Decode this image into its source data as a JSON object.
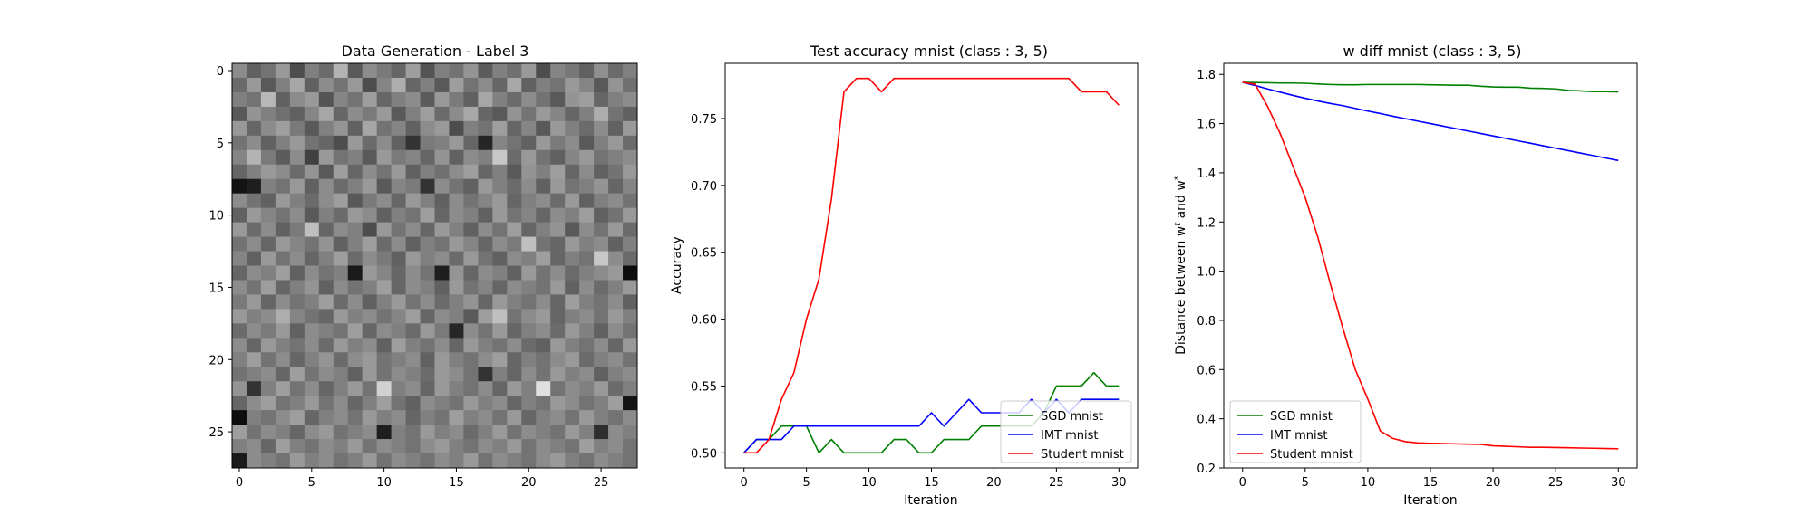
{
  "chart_data": [
    {
      "type": "heatmap",
      "title": "Data Generation - Label 3",
      "xticks": [
        "0",
        "5",
        "10",
        "15",
        "20",
        "25"
      ],
      "yticks": [
        "0",
        "5",
        "10",
        "15",
        "20",
        "25"
      ],
      "xlim": [
        -0.5,
        27.5
      ],
      "ylim": [
        27.5,
        -0.5
      ],
      "rows": 28,
      "cols": 28,
      "colormap": "gray",
      "values": [
        [
          0.55,
          0.38,
          0.45,
          0.6,
          0.3,
          0.5,
          0.42,
          0.7,
          0.35,
          0.55,
          0.48,
          0.4,
          0.62,
          0.33,
          0.5,
          0.45,
          0.58,
          0.36,
          0.5,
          0.44,
          0.6,
          0.3,
          0.52,
          0.47,
          0.38,
          0.56,
          0.42,
          0.5
        ],
        [
          0.42,
          0.6,
          0.35,
          0.5,
          0.65,
          0.38,
          0.55,
          0.45,
          0.6,
          0.3,
          0.52,
          0.68,
          0.4,
          0.5,
          0.35,
          0.62,
          0.45,
          0.55,
          0.4,
          0.66,
          0.38,
          0.5,
          0.45,
          0.6,
          0.52,
          0.35,
          0.58,
          0.44
        ],
        [
          0.5,
          0.45,
          0.72,
          0.38,
          0.55,
          0.6,
          0.33,
          0.52,
          0.45,
          0.62,
          0.4,
          0.5,
          0.55,
          0.36,
          0.6,
          0.48,
          0.38,
          0.65,
          0.5,
          0.42,
          0.55,
          0.45,
          0.35,
          0.58,
          0.62,
          0.4,
          0.5,
          0.55
        ],
        [
          0.35,
          0.58,
          0.5,
          0.44,
          0.38,
          0.52,
          0.65,
          0.4,
          0.55,
          0.48,
          0.6,
          0.35,
          0.5,
          0.62,
          0.42,
          0.55,
          0.66,
          0.4,
          0.35,
          0.58,
          0.45,
          0.6,
          0.52,
          0.4,
          0.5,
          0.68,
          0.45,
          0.38
        ],
        [
          0.6,
          0.4,
          0.55,
          0.62,
          0.48,
          0.35,
          0.5,
          0.58,
          0.38,
          0.65,
          0.45,
          0.52,
          0.38,
          0.55,
          0.6,
          0.3,
          0.5,
          0.45,
          0.62,
          0.4,
          0.52,
          0.35,
          0.6,
          0.5,
          0.42,
          0.55,
          0.38,
          0.6
        ],
        [
          0.45,
          0.55,
          0.38,
          0.5,
          0.6,
          0.45,
          0.4,
          0.3,
          0.6,
          0.42,
          0.55,
          0.38,
          0.2,
          0.48,
          0.5,
          0.6,
          0.4,
          0.15,
          0.52,
          0.45,
          0.38,
          0.6,
          0.48,
          0.55,
          0.35,
          0.5,
          0.6,
          0.42
        ],
        [
          0.52,
          0.7,
          0.48,
          0.36,
          0.55,
          0.25,
          0.6,
          0.45,
          0.5,
          0.35,
          0.6,
          0.48,
          0.52,
          0.4,
          0.58,
          0.38,
          0.55,
          0.5,
          0.78,
          0.42,
          0.6,
          0.45,
          0.38,
          0.52,
          0.6,
          0.45,
          0.5,
          0.55
        ],
        [
          0.4,
          0.5,
          0.6,
          0.55,
          0.42,
          0.58,
          0.35,
          0.62,
          0.4,
          0.55,
          0.45,
          0.6,
          0.38,
          0.5,
          0.44,
          0.55,
          0.62,
          0.4,
          0.5,
          0.35,
          0.58,
          0.5,
          0.62,
          0.4,
          0.55,
          0.38,
          0.45,
          0.6
        ],
        [
          0.08,
          0.12,
          0.5,
          0.45,
          0.6,
          0.38,
          0.55,
          0.42,
          0.5,
          0.6,
          0.35,
          0.52,
          0.48,
          0.2,
          0.55,
          0.45,
          0.38,
          0.6,
          0.5,
          0.42,
          0.55,
          0.38,
          0.6,
          0.45,
          0.5,
          0.58,
          0.4,
          0.52
        ],
        [
          0.55,
          0.45,
          0.38,
          0.6,
          0.5,
          0.42,
          0.55,
          0.62,
          0.35,
          0.48,
          0.55,
          0.4,
          0.6,
          0.5,
          0.38,
          0.55,
          0.45,
          0.52,
          0.6,
          0.4,
          0.5,
          0.55,
          0.42,
          0.6,
          0.38,
          0.5,
          0.55,
          0.45
        ],
        [
          0.38,
          0.6,
          0.52,
          0.45,
          0.55,
          0.35,
          0.5,
          0.42,
          0.6,
          0.55,
          0.38,
          0.5,
          0.45,
          0.62,
          0.4,
          0.55,
          0.5,
          0.38,
          0.6,
          0.45,
          0.52,
          0.4,
          0.55,
          0.5,
          0.62,
          0.38,
          0.45,
          0.6
        ],
        [
          0.6,
          0.42,
          0.55,
          0.38,
          0.48,
          0.75,
          0.4,
          0.55,
          0.5,
          0.3,
          0.6,
          0.45,
          0.55,
          0.4,
          0.6,
          0.5,
          0.38,
          0.55,
          0.45,
          0.62,
          0.4,
          0.5,
          0.58,
          0.35,
          0.55,
          0.45,
          0.6,
          0.42
        ],
        [
          0.45,
          0.55,
          0.4,
          0.6,
          0.52,
          0.45,
          0.58,
          0.38,
          0.5,
          0.62,
          0.42,
          0.55,
          0.38,
          0.5,
          0.45,
          0.6,
          0.52,
          0.4,
          0.55,
          0.48,
          0.75,
          0.45,
          0.4,
          0.6,
          0.5,
          0.55,
          0.38,
          0.5
        ],
        [
          0.52,
          0.38,
          0.6,
          0.45,
          0.55,
          0.4,
          0.5,
          0.62,
          0.42,
          0.55,
          0.48,
          0.38,
          0.6,
          0.5,
          0.55,
          0.42,
          0.6,
          0.45,
          0.38,
          0.55,
          0.5,
          0.62,
          0.4,
          0.5,
          0.45,
          0.78,
          0.55,
          0.42
        ],
        [
          0.4,
          0.55,
          0.5,
          0.62,
          0.38,
          0.55,
          0.45,
          0.5,
          0.1,
          0.6,
          0.52,
          0.4,
          0.55,
          0.45,
          0.12,
          0.58,
          0.4,
          0.55,
          0.5,
          0.38,
          0.6,
          0.45,
          0.55,
          0.42,
          0.5,
          0.55,
          0.6,
          0.05
        ],
        [
          0.55,
          0.45,
          0.62,
          0.4,
          0.5,
          0.58,
          0.38,
          0.55,
          0.45,
          0.5,
          0.62,
          0.4,
          0.55,
          0.5,
          0.38,
          0.6,
          0.45,
          0.52,
          0.4,
          0.55,
          0.5,
          0.45,
          0.6,
          0.38,
          0.55,
          0.42,
          0.5,
          0.6
        ],
        [
          0.48,
          0.6,
          0.4,
          0.55,
          0.45,
          0.5,
          0.62,
          0.42,
          0.55,
          0.38,
          0.5,
          0.6,
          0.45,
          0.55,
          0.42,
          0.5,
          0.58,
          0.4,
          0.6,
          0.5,
          0.45,
          0.55,
          0.4,
          0.62,
          0.5,
          0.45,
          0.55,
          0.38
        ],
        [
          0.6,
          0.5,
          0.55,
          0.68,
          0.52,
          0.45,
          0.4,
          0.6,
          0.5,
          0.55,
          0.45,
          0.52,
          0.62,
          0.4,
          0.55,
          0.5,
          0.35,
          0.62,
          0.75,
          0.45,
          0.55,
          0.6,
          0.4,
          0.5,
          0.55,
          0.45,
          0.6,
          0.5
        ],
        [
          0.42,
          0.55,
          0.48,
          0.6,
          0.38,
          0.55,
          0.5,
          0.45,
          0.62,
          0.4,
          0.55,
          0.5,
          0.42,
          0.6,
          0.48,
          0.15,
          0.55,
          0.45,
          0.6,
          0.4,
          0.5,
          0.55,
          0.42,
          0.6,
          0.5,
          0.38,
          0.55,
          0.45
        ],
        [
          0.55,
          0.4,
          0.6,
          0.5,
          0.45,
          0.55,
          0.42,
          0.6,
          0.5,
          0.55,
          0.38,
          0.62,
          0.5,
          0.45,
          0.55,
          0.4,
          0.6,
          0.5,
          0.45,
          0.55,
          0.42,
          0.38,
          0.6,
          0.5,
          0.45,
          0.55,
          0.4,
          0.6
        ],
        [
          0.5,
          0.62,
          0.45,
          0.55,
          0.4,
          0.5,
          0.58,
          0.42,
          0.55,
          0.6,
          0.45,
          0.5,
          0.55,
          0.38,
          0.6,
          0.5,
          0.45,
          0.55,
          0.62,
          0.4,
          0.5,
          0.45,
          0.55,
          0.6,
          0.42,
          0.5,
          0.55,
          0.45
        ],
        [
          0.45,
          0.5,
          0.55,
          0.4,
          0.62,
          0.45,
          0.55,
          0.5,
          0.38,
          0.6,
          0.45,
          0.55,
          0.5,
          0.42,
          0.6,
          0.55,
          0.45,
          0.2,
          0.5,
          0.4,
          0.55,
          0.45,
          0.6,
          0.5,
          0.55,
          0.38,
          0.5,
          0.55
        ],
        [
          0.58,
          0.2,
          0.5,
          0.62,
          0.45,
          0.55,
          0.4,
          0.5,
          0.6,
          0.45,
          0.82,
          0.5,
          0.55,
          0.4,
          0.6,
          0.5,
          0.45,
          0.55,
          0.4,
          0.6,
          0.5,
          0.88,
          0.45,
          0.55,
          0.5,
          0.6,
          0.42,
          0.5
        ],
        [
          0.4,
          0.55,
          0.62,
          0.45,
          0.5,
          0.6,
          0.45,
          0.55,
          0.4,
          0.5,
          0.62,
          0.45,
          0.38,
          0.55,
          0.5,
          0.45,
          0.6,
          0.5,
          0.55,
          0.4,
          0.5,
          0.45,
          0.6,
          0.55,
          0.45,
          0.5,
          0.62,
          0.08
        ],
        [
          0.05,
          0.5,
          0.45,
          0.55,
          0.62,
          0.4,
          0.5,
          0.55,
          0.45,
          0.6,
          0.5,
          0.55,
          0.4,
          0.5,
          0.45,
          0.62,
          0.5,
          0.55,
          0.45,
          0.6,
          0.4,
          0.5,
          0.55,
          0.45,
          0.6,
          0.5,
          0.45,
          0.55
        ],
        [
          0.62,
          0.45,
          0.55,
          0.5,
          0.4,
          0.55,
          0.6,
          0.45,
          0.5,
          0.55,
          0.12,
          0.5,
          0.45,
          0.6,
          0.5,
          0.55,
          0.42,
          0.5,
          0.6,
          0.45,
          0.55,
          0.5,
          0.45,
          0.6,
          0.5,
          0.18,
          0.55,
          0.5
        ],
        [
          0.5,
          0.55,
          0.4,
          0.62,
          0.5,
          0.45,
          0.55,
          0.5,
          0.6,
          0.45,
          0.55,
          0.5,
          0.45,
          0.55,
          0.6,
          0.5,
          0.45,
          0.55,
          0.5,
          0.6,
          0.45,
          0.55,
          0.5,
          0.45,
          0.62,
          0.5,
          0.55,
          0.45
        ],
        [
          0.1,
          0.55,
          0.5,
          0.45,
          0.6,
          0.5,
          0.55,
          0.45,
          0.5,
          0.6,
          0.45,
          0.55,
          0.5,
          0.45,
          0.55,
          0.5,
          0.6,
          0.45,
          0.55,
          0.5,
          0.45,
          0.55,
          0.6,
          0.5,
          0.45,
          0.55,
          0.5,
          0.45
        ]
      ]
    },
    {
      "type": "line",
      "title": "Test accuracy mnist (class : 3, 5)",
      "xlabel": "Iteration",
      "ylabel": "Accuracy",
      "xlim": [
        -1.5,
        31.5
      ],
      "ylim": [
        0.4887,
        0.7913
      ],
      "xticks": [
        0,
        5,
        10,
        15,
        20,
        25,
        30
      ],
      "xtick_labels": [
        "0",
        "5",
        "10",
        "15",
        "20",
        "25",
        "30"
      ],
      "yticks": [
        0.5,
        0.55,
        0.6,
        0.65,
        0.7,
        0.75
      ],
      "ytick_labels": [
        "0.50",
        "0.55",
        "0.60",
        "0.65",
        "0.70",
        "0.75"
      ],
      "legend_position": "lower-right",
      "x": [
        0,
        1,
        2,
        3,
        4,
        5,
        6,
        7,
        8,
        9,
        10,
        11,
        12,
        13,
        14,
        15,
        16,
        17,
        18,
        19,
        20,
        21,
        22,
        23,
        24,
        25,
        26,
        27,
        28,
        29,
        30
      ],
      "series": [
        {
          "name": "SGD mnist",
          "color": "#008000",
          "values": [
            0.5,
            0.51,
            0.51,
            0.52,
            0.52,
            0.52,
            0.5,
            0.51,
            0.5,
            0.5,
            0.5,
            0.5,
            0.51,
            0.51,
            0.5,
            0.5,
            0.51,
            0.51,
            0.51,
            0.52,
            0.52,
            0.52,
            0.52,
            0.52,
            0.53,
            0.55,
            0.55,
            0.55,
            0.56,
            0.55,
            0.55
          ]
        },
        {
          "name": "IMT mnist",
          "color": "#0000ff",
          "values": [
            0.5,
            0.51,
            0.51,
            0.51,
            0.52,
            0.52,
            0.52,
            0.52,
            0.52,
            0.52,
            0.52,
            0.52,
            0.52,
            0.52,
            0.52,
            0.53,
            0.52,
            0.53,
            0.54,
            0.53,
            0.53,
            0.53,
            0.53,
            0.54,
            0.53,
            0.54,
            0.53,
            0.54,
            0.54,
            0.54,
            0.54
          ]
        },
        {
          "name": "Student mnist",
          "color": "#ff0000",
          "values": [
            0.5,
            0.5,
            0.51,
            0.54,
            0.56,
            0.6,
            0.63,
            0.69,
            0.77,
            0.78,
            0.78,
            0.77,
            0.78,
            0.78,
            0.78,
            0.78,
            0.78,
            0.78,
            0.78,
            0.78,
            0.78,
            0.78,
            0.78,
            0.78,
            0.78,
            0.78,
            0.78,
            0.77,
            0.77,
            0.77,
            0.76
          ]
        }
      ]
    },
    {
      "type": "line",
      "title": "w diff mnist (class : 3, 5)",
      "xlabel": "Iteration",
      "ylabel_main": "Distance between w",
      "ylabel_sup1": "t",
      "ylabel_mid": " and w",
      "ylabel_sup2": "*",
      "xlim": [
        -1.5,
        31.5
      ],
      "ylim": [
        0.2,
        1.845
      ],
      "xticks": [
        0,
        5,
        10,
        15,
        20,
        25,
        30
      ],
      "xtick_labels": [
        "0",
        "5",
        "10",
        "15",
        "20",
        "25",
        "30"
      ],
      "yticks": [
        0.2,
        0.4,
        0.6,
        0.8,
        1.0,
        1.2,
        1.4,
        1.6,
        1.8
      ],
      "ytick_labels": [
        "0.2",
        "0.4",
        "0.6",
        "0.8",
        "1.0",
        "1.2",
        "1.4",
        "1.6",
        "1.8"
      ],
      "legend_position": "lower-left",
      "x": [
        0,
        1,
        2,
        3,
        4,
        5,
        6,
        7,
        8,
        9,
        10,
        11,
        12,
        13,
        14,
        15,
        16,
        17,
        18,
        19,
        20,
        21,
        22,
        23,
        24,
        25,
        26,
        27,
        28,
        29,
        30
      ],
      "series": [
        {
          "name": "SGD mnist",
          "color": "#008000",
          "values": [
            1.768,
            1.767,
            1.766,
            1.765,
            1.765,
            1.764,
            1.761,
            1.759,
            1.758,
            1.758,
            1.759,
            1.759,
            1.759,
            1.759,
            1.759,
            1.758,
            1.757,
            1.756,
            1.756,
            1.752,
            1.749,
            1.748,
            1.748,
            1.744,
            1.743,
            1.741,
            1.735,
            1.733,
            1.73,
            1.73,
            1.729
          ]
        },
        {
          "name": "IMT mnist",
          "color": "#0000ff",
          "values": [
            1.768,
            1.755,
            1.741,
            1.728,
            1.715,
            1.703,
            1.692,
            1.682,
            1.673,
            1.662,
            1.651,
            1.641,
            1.63,
            1.62,
            1.61,
            1.6,
            1.59,
            1.58,
            1.57,
            1.56,
            1.55,
            1.54,
            1.53,
            1.52,
            1.51,
            1.5,
            1.49,
            1.48,
            1.47,
            1.46,
            1.45
          ]
        },
        {
          "name": "Student mnist",
          "color": "#ff0000",
          "values": [
            1.768,
            1.76,
            1.67,
            1.56,
            1.43,
            1.3,
            1.14,
            0.95,
            0.77,
            0.6,
            0.48,
            0.35,
            0.32,
            0.307,
            0.302,
            0.3,
            0.299,
            0.298,
            0.297,
            0.296,
            0.29,
            0.288,
            0.286,
            0.284,
            0.284,
            0.283,
            0.282,
            0.281,
            0.28,
            0.279,
            0.278
          ]
        }
      ]
    }
  ]
}
